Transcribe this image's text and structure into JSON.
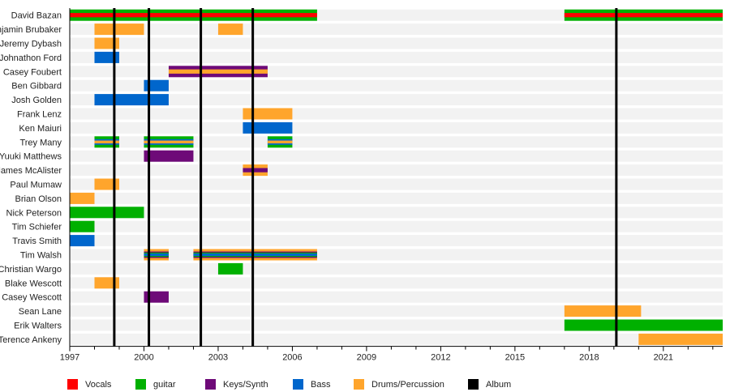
{
  "chart_data": {
    "type": "timeline",
    "xlim": [
      1997,
      2023.4
    ],
    "x_ticks": [
      1997,
      2000,
      2003,
      2006,
      2009,
      2012,
      2015,
      2018,
      2021
    ],
    "legend_position": "bottom",
    "roles": [
      {
        "name": "Vocals",
        "color": "#ff0000"
      },
      {
        "name": "guitar",
        "color": "#00b000"
      },
      {
        "name": "Keys/Synth",
        "color": "#6e0a78"
      },
      {
        "name": "Bass",
        "color": "#0066cc"
      },
      {
        "name": "Drums/Percussion",
        "color": "#ffa52c"
      },
      {
        "name": "Album",
        "color": "#000000"
      }
    ],
    "albums": [
      1998.8,
      2000.2,
      2002.3,
      2004.4,
      2019.1
    ],
    "members": [
      {
        "name": "David Bazan",
        "spans": [
          {
            "start": 1997,
            "end": 2007,
            "roles": [
              "guitar",
              "Vocals"
            ]
          },
          {
            "start": 2017,
            "end": 2023.4,
            "roles": [
              "guitar",
              "Vocals"
            ]
          }
        ]
      },
      {
        "name": "Benjamin Brubaker",
        "spans": [
          {
            "start": 1998,
            "end": 2000,
            "roles": [
              "Drums/Percussion"
            ]
          },
          {
            "start": 2003,
            "end": 2004,
            "roles": [
              "Drums/Percussion"
            ]
          }
        ]
      },
      {
        "name": "Jeremy Dybash",
        "spans": [
          {
            "start": 1998,
            "end": 1999,
            "roles": [
              "Drums/Percussion"
            ]
          }
        ]
      },
      {
        "name": "Johnathon Ford",
        "spans": [
          {
            "start": 1998,
            "end": 1999,
            "roles": [
              "Bass"
            ]
          }
        ]
      },
      {
        "name": "Casey Foubert",
        "spans": [
          {
            "start": 2001,
            "end": 2005,
            "roles": [
              "Keys/Synth",
              "Drums/Percussion"
            ]
          }
        ]
      },
      {
        "name": "Ben Gibbard",
        "spans": [
          {
            "start": 2000,
            "end": 2001,
            "roles": [
              "Bass"
            ]
          }
        ]
      },
      {
        "name": "Josh Golden",
        "spans": [
          {
            "start": 1998,
            "end": 2001,
            "roles": [
              "Bass"
            ]
          }
        ]
      },
      {
        "name": "Frank Lenz",
        "spans": [
          {
            "start": 2004,
            "end": 2006,
            "roles": [
              "Drums/Percussion"
            ]
          }
        ]
      },
      {
        "name": "Ken Maiuri",
        "spans": [
          {
            "start": 2004,
            "end": 2006,
            "roles": [
              "Bass"
            ]
          }
        ]
      },
      {
        "name": "Trey Many",
        "spans": [
          {
            "start": 1998,
            "end": 1999,
            "roles": [
              "guitar",
              "Bass",
              "Drums/Percussion"
            ]
          },
          {
            "start": 2000,
            "end": 2002,
            "roles": [
              "guitar",
              "Bass",
              "Drums/Percussion"
            ]
          },
          {
            "start": 2005,
            "end": 2006,
            "roles": [
              "guitar",
              "Bass",
              "Drums/Percussion"
            ]
          }
        ]
      },
      {
        "name": "Yuuki Matthews",
        "spans": [
          {
            "start": 2000,
            "end": 2002,
            "roles": [
              "Keys/Synth"
            ]
          }
        ]
      },
      {
        "name": "James McAlister",
        "spans": [
          {
            "start": 2004,
            "end": 2005,
            "roles": [
              "Drums/Percussion",
              "Keys/Synth"
            ]
          }
        ]
      },
      {
        "name": "Paul Mumaw",
        "spans": [
          {
            "start": 1998,
            "end": 1999,
            "roles": [
              "Drums/Percussion"
            ]
          }
        ]
      },
      {
        "name": "Brian Olson",
        "spans": [
          {
            "start": 1997,
            "end": 1998,
            "roles": [
              "Drums/Percussion"
            ]
          }
        ]
      },
      {
        "name": "Nick Peterson",
        "spans": [
          {
            "start": 1997,
            "end": 2000,
            "roles": [
              "guitar"
            ]
          }
        ]
      },
      {
        "name": "Tim Schiefer",
        "spans": [
          {
            "start": 1997,
            "end": 1998,
            "roles": [
              "guitar"
            ]
          }
        ]
      },
      {
        "name": "Travis Smith",
        "spans": [
          {
            "start": 1997,
            "end": 1998,
            "roles": [
              "Bass"
            ]
          }
        ]
      },
      {
        "name": "Tim Walsh",
        "spans": [
          {
            "start": 2000,
            "end": 2001,
            "roles": [
              "Drums/Percussion",
              "Keys/Synth",
              "guitar",
              "Bass"
            ]
          },
          {
            "start": 2002,
            "end": 2007,
            "roles": [
              "Drums/Percussion",
              "Keys/Synth",
              "guitar",
              "Bass"
            ]
          }
        ]
      },
      {
        "name": "Christian Wargo",
        "spans": [
          {
            "start": 2003,
            "end": 2004,
            "roles": [
              "guitar"
            ]
          }
        ]
      },
      {
        "name": "Blake Wescott",
        "spans": [
          {
            "start": 1998,
            "end": 1999,
            "roles": [
              "Drums/Percussion"
            ]
          }
        ]
      },
      {
        "name": "Casey Wescott",
        "spans": [
          {
            "start": 2000,
            "end": 2001,
            "roles": [
              "Keys/Synth"
            ]
          }
        ]
      },
      {
        "name": "Sean Lane",
        "spans": [
          {
            "start": 2017,
            "end": 2020.1,
            "roles": [
              "Drums/Percussion"
            ]
          }
        ]
      },
      {
        "name": "Erik Walters",
        "spans": [
          {
            "start": 2017,
            "end": 2023.4,
            "roles": [
              "guitar"
            ]
          }
        ]
      },
      {
        "name": "Terence Ankeny",
        "spans": [
          {
            "start": 2020,
            "end": 2023.4,
            "roles": [
              "Drums/Percussion"
            ]
          }
        ]
      }
    ]
  }
}
